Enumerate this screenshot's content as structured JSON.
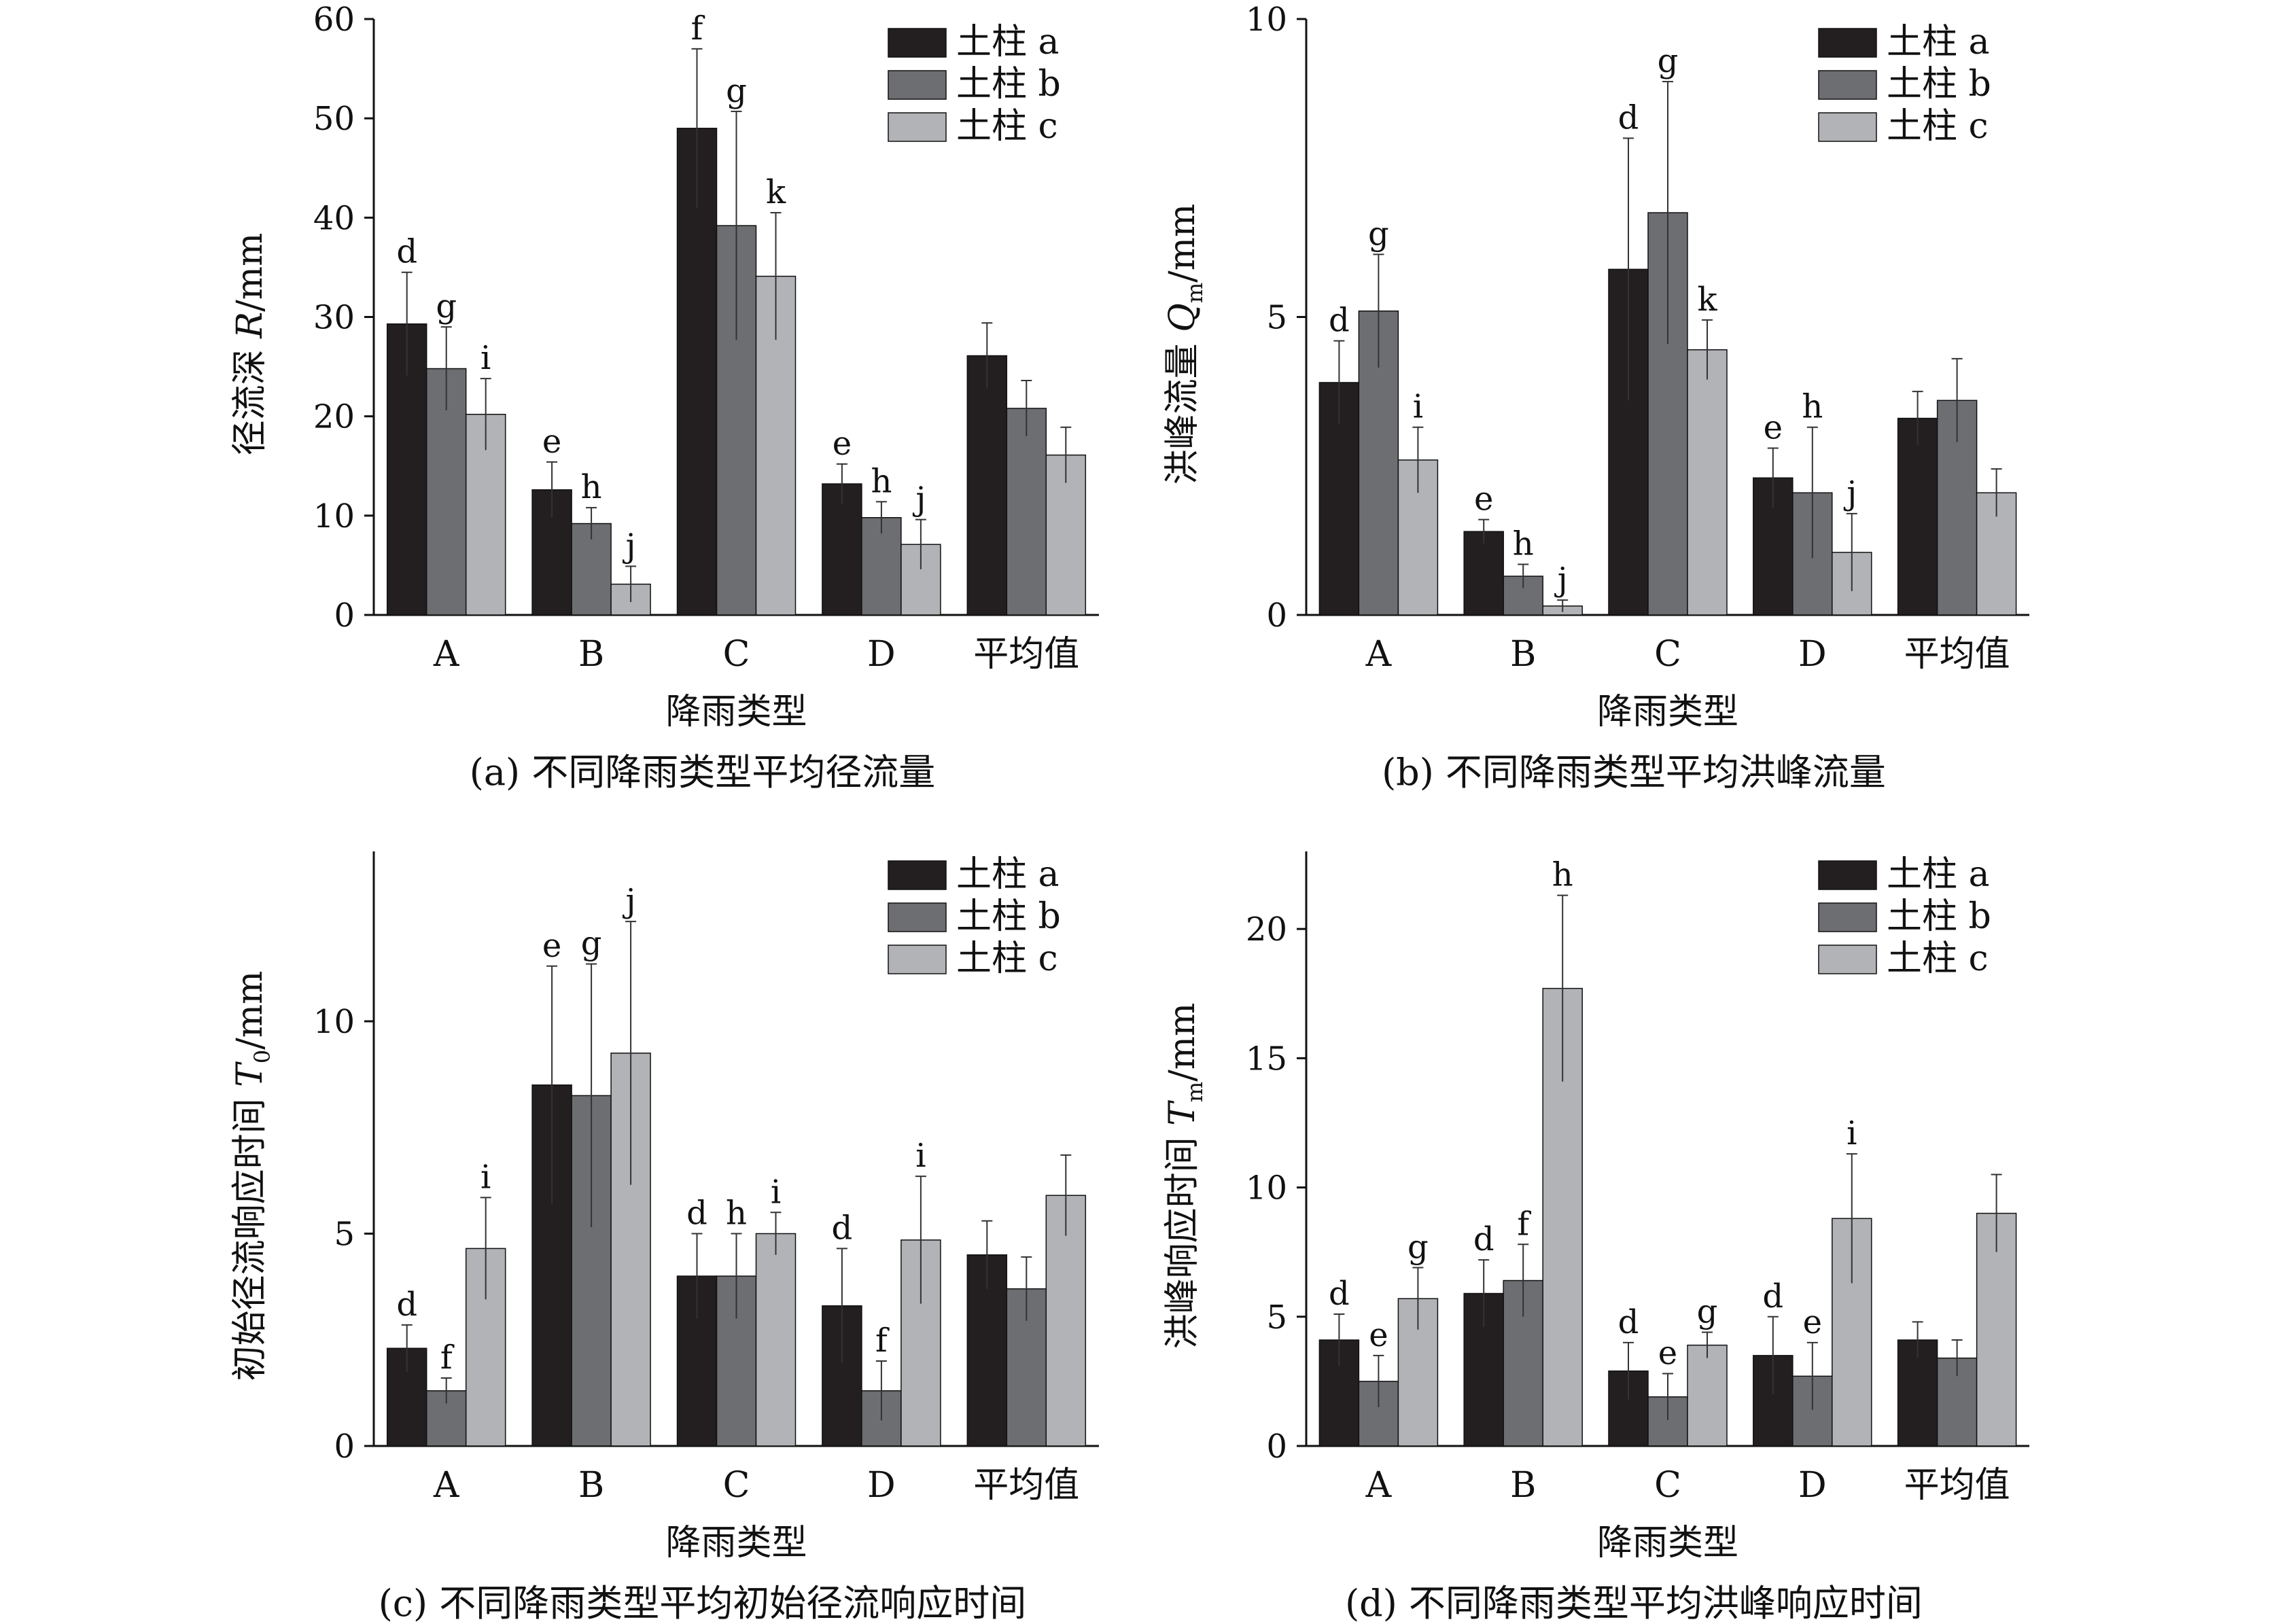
{
  "colors": {
    "a": "#231f20",
    "b": "#6d6e71",
    "c": "#b1b3b6",
    "axis": "#111111",
    "error": "#333333"
  },
  "chart_data": [
    {
      "type": "bar",
      "caption": "(a) 不同降雨类型平均径流量",
      "xlabel": "降雨类型",
      "ylabel_main": "径流深 ",
      "ylabel_var": "R",
      "ylabel_sub": "",
      "ylabel_unit": "/mm",
      "ylim": [
        0,
        60
      ],
      "yticks": [
        0,
        10,
        20,
        30,
        40,
        50,
        60
      ],
      "categories": [
        "A",
        "B",
        "C",
        "D",
        "平均值"
      ],
      "legend_position": "top-right",
      "series": [
        {
          "name": "土柱 a",
          "values": [
            29.3,
            12.6,
            49.0,
            13.2,
            26.1
          ],
          "errors": [
            5.2,
            2.8,
            8.0,
            2.0,
            3.3
          ],
          "letters": [
            "d",
            "e",
            "f",
            "e",
            ""
          ]
        },
        {
          "name": "土柱 b",
          "values": [
            24.8,
            9.2,
            39.2,
            9.8,
            20.8
          ],
          "errors": [
            4.2,
            1.6,
            11.5,
            1.6,
            2.8
          ],
          "letters": [
            "g",
            "h",
            "g",
            "h",
            ""
          ]
        },
        {
          "name": "土柱 c",
          "values": [
            20.2,
            3.1,
            34.1,
            7.1,
            16.1
          ],
          "errors": [
            3.6,
            1.8,
            6.4,
            2.5,
            2.8
          ],
          "letters": [
            "i",
            "j",
            "k",
            "j",
            ""
          ]
        }
      ]
    },
    {
      "type": "bar",
      "caption": "(b) 不同降雨类型平均洪峰流量",
      "xlabel": "降雨类型",
      "ylabel_main": "洪峰流量 ",
      "ylabel_var": "Q",
      "ylabel_sub": "m",
      "ylabel_unit": "/mm",
      "ylim": [
        0,
        10
      ],
      "yticks": [
        0,
        5,
        10
      ],
      "categories": [
        "A",
        "B",
        "C",
        "D",
        "平均值"
      ],
      "legend_position": "top-right",
      "series": [
        {
          "name": "土柱 a",
          "values": [
            3.9,
            1.4,
            5.8,
            2.3,
            3.3
          ],
          "errors": [
            0.7,
            0.2,
            2.2,
            0.5,
            0.45
          ],
          "letters": [
            "d",
            "e",
            "d",
            "e",
            ""
          ]
        },
        {
          "name": "土柱 b",
          "values": [
            5.1,
            0.65,
            6.75,
            2.05,
            3.6
          ],
          "errors": [
            0.95,
            0.2,
            2.2,
            1.1,
            0.7
          ],
          "letters": [
            "g",
            "h",
            "g",
            "h",
            ""
          ]
        },
        {
          "name": "土柱 c",
          "values": [
            2.6,
            0.15,
            4.45,
            1.05,
            2.05
          ],
          "errors": [
            0.55,
            0.1,
            0.5,
            0.65,
            0.4
          ],
          "letters": [
            "i",
            "j",
            "k",
            "j",
            ""
          ]
        }
      ]
    },
    {
      "type": "bar",
      "caption": "(c) 不同降雨类型平均初始径流响应时间",
      "xlabel": "降雨类型",
      "ylabel_main": "初始径流响应时间 ",
      "ylabel_var": "T",
      "ylabel_sub": "0",
      "ylabel_unit": "/mm",
      "ylim": [
        0,
        14
      ],
      "yticks": [
        0,
        5,
        10
      ],
      "categories": [
        "A",
        "B",
        "C",
        "D",
        "平均值"
      ],
      "legend_position": "top-right",
      "series": [
        {
          "name": "土柱 a",
          "values": [
            2.3,
            8.5,
            4.0,
            3.3,
            4.5
          ],
          "errors": [
            0.55,
            2.8,
            1.0,
            1.35,
            0.8
          ],
          "letters": [
            "d",
            "e",
            "d",
            "d",
            ""
          ]
        },
        {
          "name": "土柱 b",
          "values": [
            1.3,
            8.25,
            4.0,
            1.3,
            3.7
          ],
          "errors": [
            0.3,
            3.1,
            1.0,
            0.7,
            0.75
          ],
          "letters": [
            "f",
            "g",
            "h",
            "f",
            ""
          ]
        },
        {
          "name": "土柱 c",
          "values": [
            4.65,
            9.25,
            5.0,
            4.85,
            5.9
          ],
          "errors": [
            1.2,
            3.1,
            0.5,
            1.5,
            0.95
          ],
          "letters": [
            "i",
            "j",
            "i",
            "i",
            ""
          ]
        }
      ]
    },
    {
      "type": "bar",
      "caption": "(d) 不同降雨类型平均洪峰响应时间",
      "xlabel": "降雨类型",
      "ylabel_main": "洪峰响应时间 ",
      "ylabel_var": "T",
      "ylabel_sub": "m",
      "ylabel_unit": "/mm",
      "ylim": [
        0,
        23
      ],
      "yticks": [
        0,
        5,
        10,
        15,
        20
      ],
      "categories": [
        "A",
        "B",
        "C",
        "D",
        "平均值"
      ],
      "legend_position": "top-right",
      "series": [
        {
          "name": "土柱 a",
          "values": [
            4.1,
            5.9,
            2.9,
            3.5,
            4.1
          ],
          "errors": [
            1.0,
            1.3,
            1.1,
            1.5,
            0.7
          ],
          "letters": [
            "d",
            "d",
            "d",
            "d",
            ""
          ]
        },
        {
          "name": "土柱 b",
          "values": [
            2.5,
            6.4,
            1.9,
            2.7,
            3.4
          ],
          "errors": [
            1.0,
            1.4,
            0.9,
            1.3,
            0.7
          ],
          "letters": [
            "e",
            "f",
            "e",
            "e",
            ""
          ]
        },
        {
          "name": "土柱 c",
          "values": [
            5.7,
            17.7,
            3.9,
            8.8,
            9.0
          ],
          "errors": [
            1.2,
            3.6,
            0.5,
            2.5,
            1.5
          ],
          "letters": [
            "g",
            "h",
            "g",
            "i",
            ""
          ]
        }
      ]
    }
  ]
}
